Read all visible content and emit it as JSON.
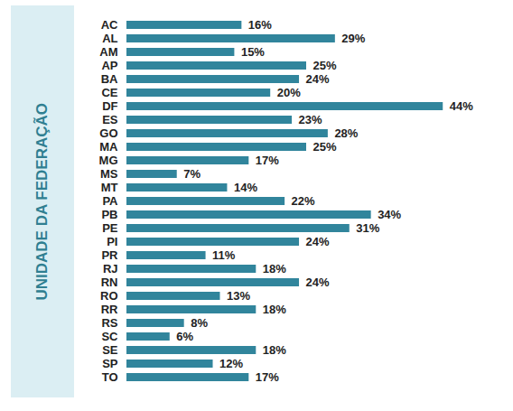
{
  "chart_data": {
    "type": "bar",
    "orientation": "horizontal",
    "y_label": "UNIDADE DA FEDERAÇÃO",
    "categories": [
      "AC",
      "AL",
      "AM",
      "AP",
      "BA",
      "CE",
      "DF",
      "ES",
      "GO",
      "MA",
      "MG",
      "MS",
      "MT",
      "PA",
      "PB",
      "PE",
      "PI",
      "PR",
      "RJ",
      "RN",
      "RO",
      "RR",
      "RS",
      "SC",
      "SE",
      "SP",
      "TO"
    ],
    "values": [
      16,
      29,
      15,
      25,
      24,
      20,
      44,
      23,
      28,
      25,
      17,
      7,
      14,
      22,
      34,
      31,
      24,
      11,
      18,
      24,
      13,
      18,
      8,
      6,
      18,
      12,
      17
    ],
    "value_labels": [
      "16%",
      "29%",
      "15%",
      "25%",
      "24%",
      "20%",
      "44%",
      "23%",
      "28%",
      "25%",
      "17%",
      "7%",
      "14%",
      "22%",
      "34%",
      "31%",
      "24%",
      "11%",
      "18%",
      "24%",
      "13%",
      "18%",
      "8%",
      "6%",
      "18%",
      "12%",
      "17%"
    ],
    "color": "#31859c",
    "xlim": [
      0,
      50
    ],
    "data_labels": true,
    "tick_labels": "y",
    "grid": false
  }
}
